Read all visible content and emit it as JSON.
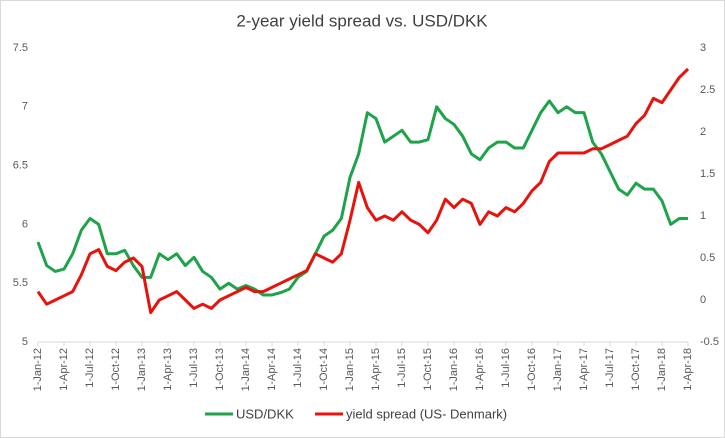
{
  "chart_data": {
    "type": "line",
    "title": "2-year yield spread vs. USD/DKK",
    "categories": [
      "1-Jan-12",
      null,
      null,
      "1-Apr-12",
      null,
      null,
      "1-Jul-12",
      null,
      null,
      "1-Oct-12",
      null,
      null,
      "1-Jan-13",
      null,
      null,
      "1-Apr-13",
      null,
      null,
      "1-Jul-13",
      null,
      null,
      "1-Oct-13",
      null,
      null,
      "1-Jan-14",
      null,
      null,
      "1-Apr-14",
      null,
      null,
      "1-Jul-14",
      null,
      null,
      "1-Oct-14",
      null,
      null,
      "1-Jan-15",
      null,
      null,
      "1-Apr-15",
      null,
      null,
      "1-Jul-15",
      null,
      null,
      "1-Oct-15",
      null,
      null,
      "1-Jan-16",
      null,
      null,
      "1-Apr-16",
      null,
      null,
      "1-Jul-16",
      null,
      null,
      "1-Oct-16",
      null,
      null,
      "1-Jan-17",
      null,
      null,
      "1-Apr-17",
      null,
      null,
      "1-Jul-17",
      null,
      null,
      "1-Oct-17",
      null,
      null,
      "1-Jan-18",
      null,
      null,
      "1-Apr-18"
    ],
    "series": [
      {
        "name": "USD/DKK",
        "color": "#1fa34a",
        "axis": "y",
        "values": [
          5.85,
          5.65,
          5.6,
          5.62,
          5.75,
          5.95,
          6.05,
          6.0,
          5.75,
          5.75,
          5.78,
          5.65,
          5.55,
          5.55,
          5.75,
          5.7,
          5.75,
          5.65,
          5.72,
          5.6,
          5.55,
          5.45,
          5.5,
          5.45,
          5.48,
          5.45,
          5.4,
          5.4,
          5.42,
          5.45,
          5.55,
          5.6,
          5.75,
          5.9,
          5.95,
          6.05,
          6.4,
          6.6,
          6.95,
          6.9,
          6.7,
          6.75,
          6.8,
          6.7,
          6.7,
          6.72,
          7.0,
          6.9,
          6.85,
          6.75,
          6.6,
          6.55,
          6.65,
          6.7,
          6.7,
          6.65,
          6.65,
          6.8,
          6.95,
          7.05,
          6.95,
          7.0,
          6.95,
          6.95,
          6.7,
          6.6,
          6.45,
          6.3,
          6.25,
          6.35,
          6.3,
          6.3,
          6.2,
          6.0,
          6.05,
          6.05
        ]
      },
      {
        "name": "yield spread (US- Denmark)",
        "color": "#e8120c",
        "axis": "y2",
        "values": [
          0.1,
          -0.05,
          0.0,
          0.05,
          0.1,
          0.3,
          0.55,
          0.6,
          0.4,
          0.35,
          0.45,
          0.5,
          0.4,
          -0.15,
          0.0,
          0.05,
          0.1,
          0.0,
          -0.1,
          -0.05,
          -0.1,
          0.0,
          0.05,
          0.1,
          0.15,
          0.1,
          0.1,
          0.15,
          0.2,
          0.25,
          0.3,
          0.35,
          0.55,
          0.5,
          0.45,
          0.55,
          0.95,
          1.4,
          1.1,
          0.95,
          1.0,
          0.95,
          1.05,
          0.95,
          0.9,
          0.8,
          0.95,
          1.2,
          1.1,
          1.2,
          1.15,
          0.9,
          1.05,
          1.0,
          1.1,
          1.05,
          1.15,
          1.3,
          1.4,
          1.65,
          1.75,
          1.75,
          1.75,
          1.75,
          1.8,
          1.8,
          1.85,
          1.9,
          1.95,
          2.1,
          2.2,
          2.4,
          2.35,
          2.5,
          2.65,
          2.75
        ]
      }
    ],
    "ylim": [
      5,
      7.5
    ],
    "yticks": [
      5,
      5.5,
      6,
      6.5,
      7,
      7.5
    ],
    "y2lim": [
      -0.5,
      3
    ],
    "y2ticks": [
      -0.5,
      0,
      0.5,
      1,
      1.5,
      2,
      2.5,
      3
    ],
    "grid": false,
    "legend": "bottom"
  }
}
